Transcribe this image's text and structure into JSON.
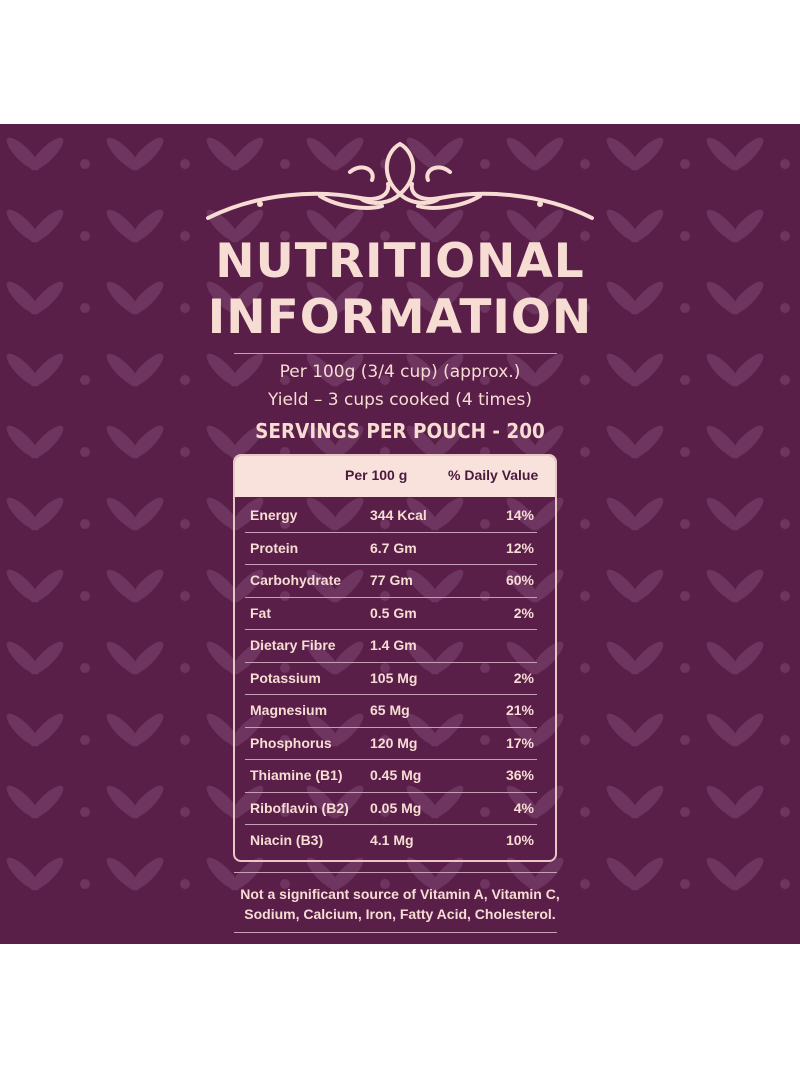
{
  "title": {
    "line1": "NUTRITIONAL",
    "line2": "INFORMATION"
  },
  "per_serving": "Per 100g (3/4 cup) (approx.)",
  "yield": "Yield – 3 cups cooked (4 times)",
  "servings": "SERVINGS PER POUCH - 200",
  "table": {
    "headers": {
      "nutrient": "",
      "per100": "Per 100 g",
      "dv": "% Daily Value"
    },
    "rows": [
      {
        "name": "Energy",
        "amount": "344 Kcal",
        "dv": "14%"
      },
      {
        "name": "Protein",
        "amount": "6.7 Gm",
        "dv": "12%"
      },
      {
        "name": "Carbohydrate",
        "amount": "77 Gm",
        "dv": "60%"
      },
      {
        "name": "Fat",
        "amount": "0.5 Gm",
        "dv": "2%"
      },
      {
        "name": "Dietary Fibre",
        "amount": "1.4 Gm",
        "dv": ""
      },
      {
        "name": "Potassium",
        "amount": "105 Mg",
        "dv": "2%"
      },
      {
        "name": "Magnesium",
        "amount": "65 Mg",
        "dv": "21%"
      },
      {
        "name": "Phosphorus",
        "amount": "120 Mg",
        "dv": "17%"
      },
      {
        "name": "Thiamine (B1)",
        "amount": "0.45 Mg",
        "dv": "36%"
      },
      {
        "name": "Riboflavin (B2)",
        "amount": "0.05 Mg",
        "dv": "4%"
      },
      {
        "name": "Niacin (B3)",
        "amount": "4.1 Mg",
        "dv": "10%"
      }
    ]
  },
  "note": {
    "line1": "Not a significant source of Vitamin A, Vitamin C,",
    "line2": "Sodium, Calcium, Iron, Fatty Acid, Cholesterol."
  },
  "colors": {
    "background": "#5a1f49",
    "pattern": "#6e3560",
    "text": "#f6dcd3",
    "header_fill": "#f9e2dc"
  }
}
